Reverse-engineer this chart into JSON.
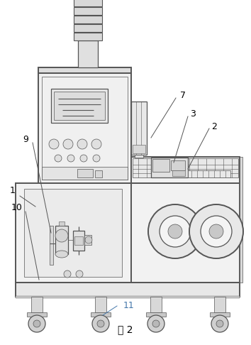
{
  "title": "图 2",
  "title_fontsize": 10,
  "figure_bg": "#ffffff",
  "line_color": "#555555",
  "label_color": "#000000",
  "blue_label_color": "#4477aa",
  "lw_main": 1.4,
  "lw_med": 0.9,
  "lw_thin": 0.5
}
